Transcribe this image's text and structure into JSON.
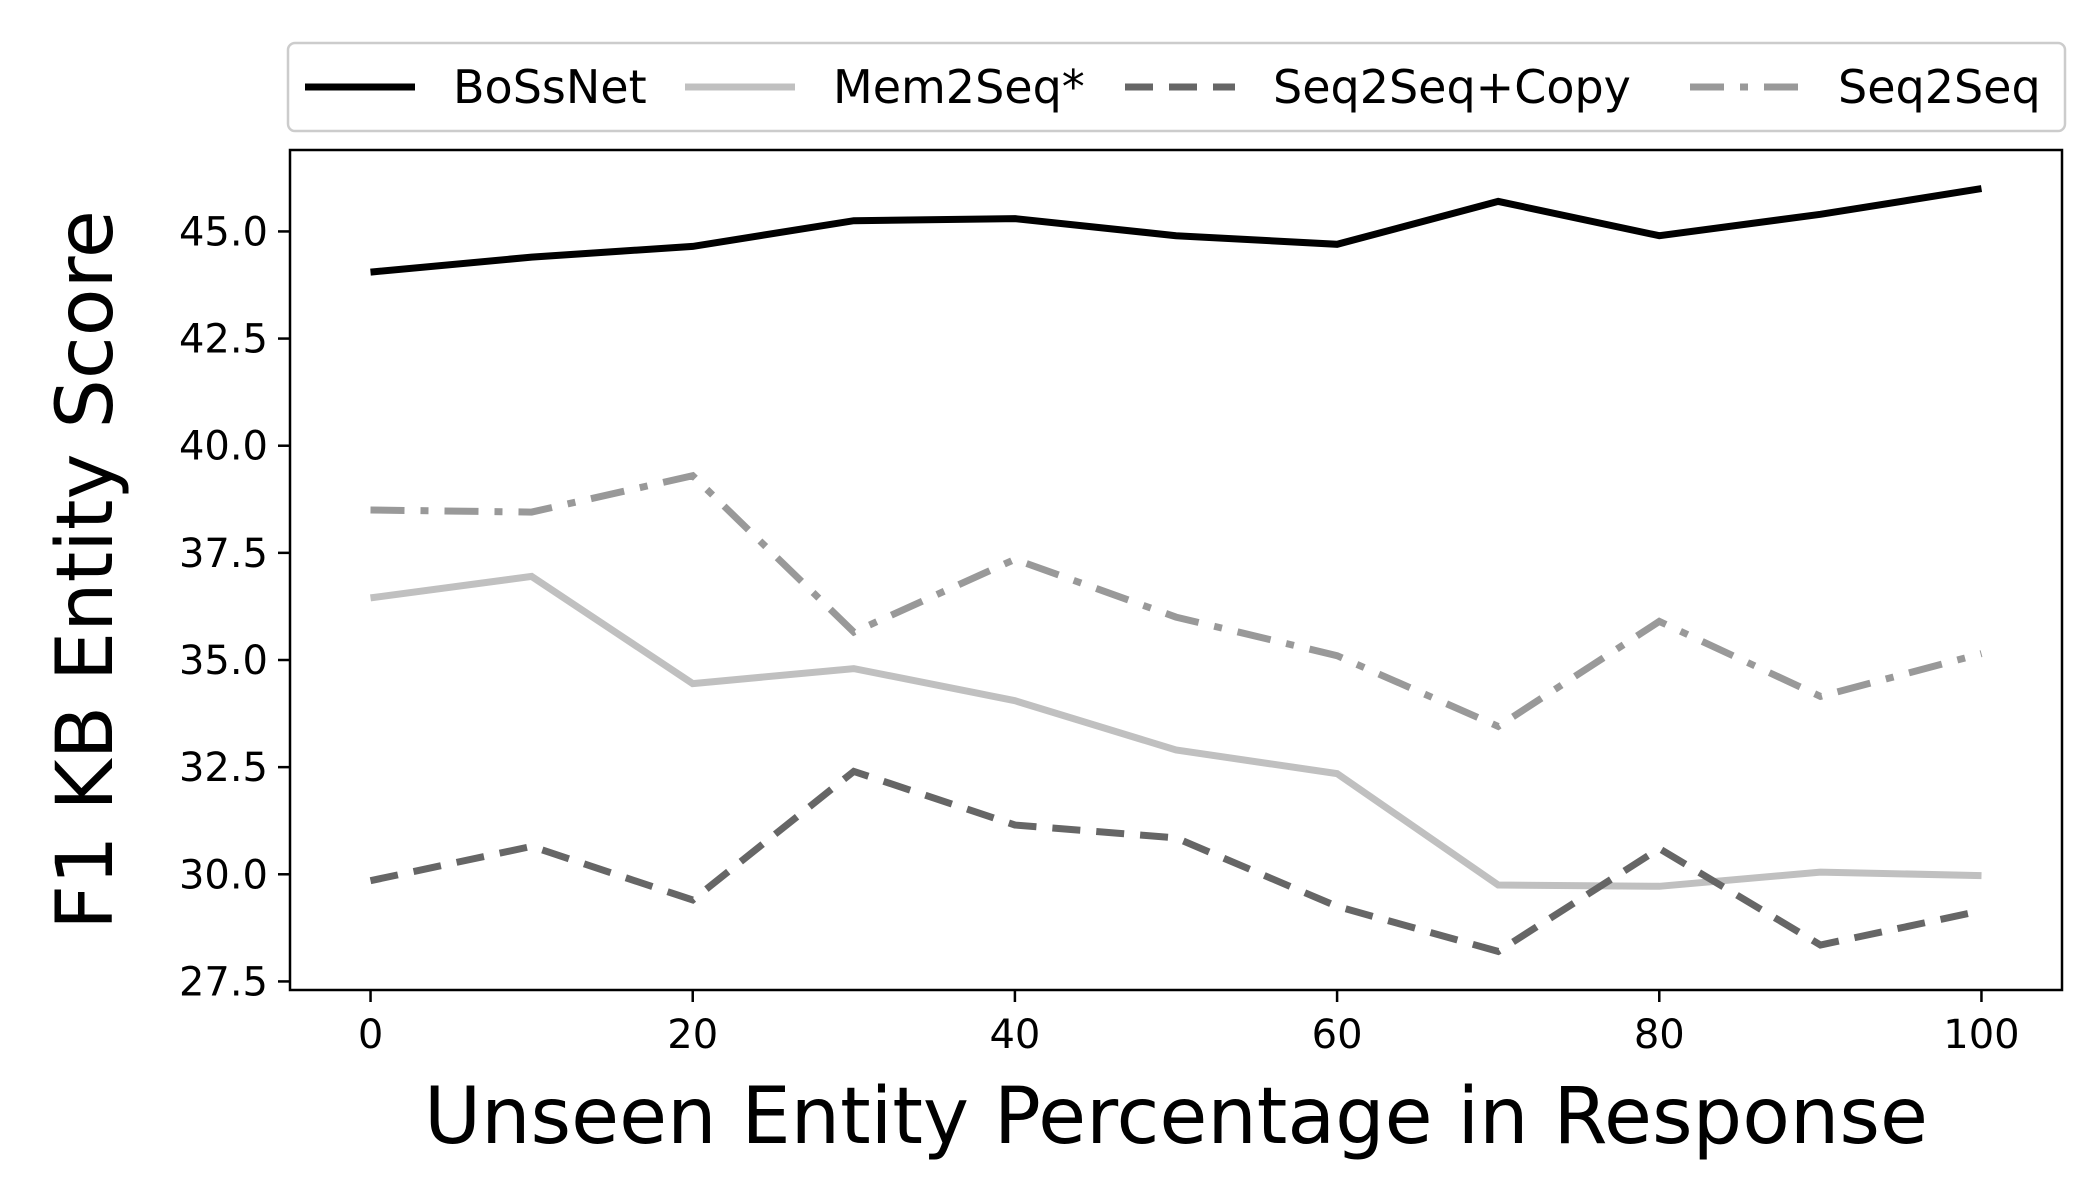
{
  "chart_data": {
    "type": "line",
    "title": "",
    "xlabel": "Unseen Entity Percentage in Response",
    "ylabel": "F1 KB Entity Score",
    "xlim": [
      -5,
      105
    ],
    "ylim": [
      27.3,
      46.9
    ],
    "x": [
      0,
      10,
      20,
      30,
      40,
      50,
      60,
      70,
      80,
      90,
      100
    ],
    "xticks": [
      0,
      20,
      40,
      60,
      80,
      100
    ],
    "xtick_labels": [
      "0",
      "20",
      "40",
      "60",
      "80",
      "100"
    ],
    "yticks": [
      27.5,
      30.0,
      32.5,
      35.0,
      37.5,
      40.0,
      42.5,
      45.0
    ],
    "ytick_labels": [
      "27.5",
      "30.0",
      "32.5",
      "35.0",
      "37.5",
      "40.0",
      "42.5",
      "45.0"
    ],
    "grid": false,
    "legend_position": "top, outside plot",
    "series": [
      {
        "name": "BoSsNet",
        "color": "#000000",
        "style": "solid",
        "values": [
          44.05,
          44.4,
          44.65,
          45.25,
          45.3,
          44.9,
          44.7,
          45.7,
          44.9,
          45.4,
          46.0
        ]
      },
      {
        "name": "Mem2Seq*",
        "color": "#c0c0c0",
        "style": "solid",
        "values": [
          36.45,
          36.95,
          34.45,
          34.8,
          34.05,
          32.9,
          32.35,
          29.75,
          29.72,
          30.05,
          29.97
        ]
      },
      {
        "name": "Seq2Seq+Copy",
        "color": "#666666",
        "style": "dashed",
        "values": [
          29.85,
          30.65,
          29.4,
          32.4,
          31.15,
          30.85,
          29.25,
          28.2,
          30.6,
          28.35,
          29.15
        ]
      },
      {
        "name": "Seq2Seq",
        "color": "#999999",
        "style": "dashdot",
        "values": [
          38.5,
          38.45,
          39.3,
          35.65,
          37.35,
          36.0,
          35.1,
          33.45,
          35.9,
          34.15,
          35.15
        ]
      }
    ]
  }
}
